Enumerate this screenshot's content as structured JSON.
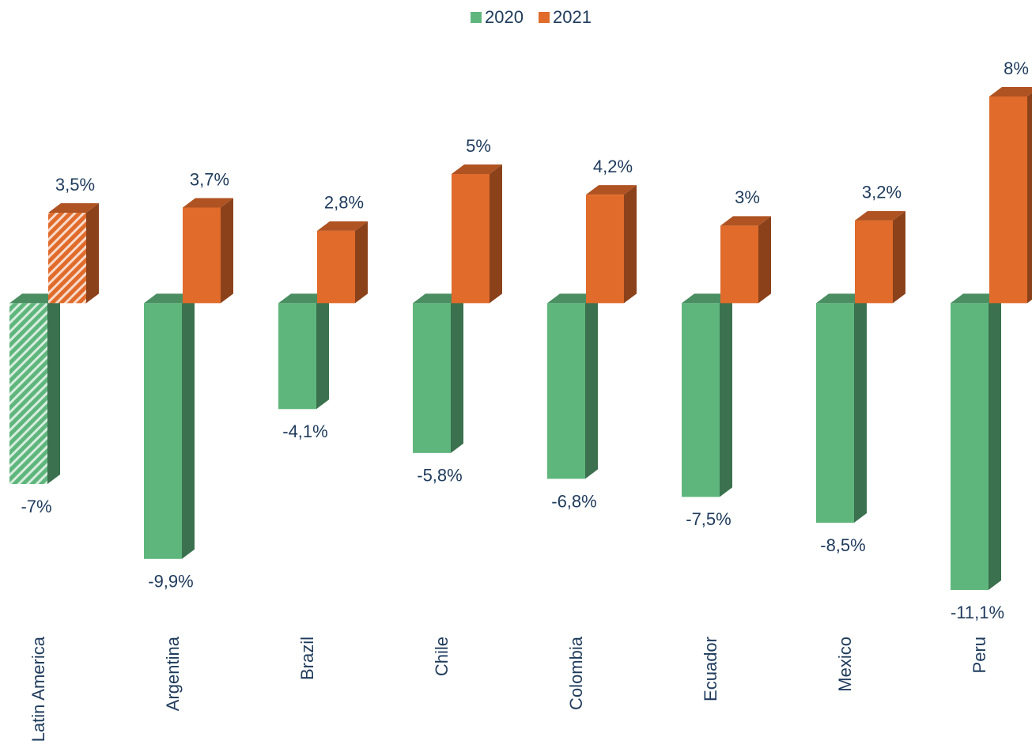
{
  "chart_data": {
    "type": "bar3d",
    "categories": [
      "Latin America",
      "Argentina",
      "Brazil",
      "Chile",
      "Colombia",
      "Ecuador",
      "Mexico",
      "Peru"
    ],
    "series": [
      {
        "name": "2020",
        "color": "#5fb67d",
        "values": [
          -7,
          -9.9,
          -4.1,
          -5.8,
          -6.8,
          -7.5,
          -8.5,
          -11.1
        ],
        "value_labels": [
          "-7%",
          "-9,9%",
          "-4,1%",
          "-5,8%",
          "-6,8%",
          "-7,5%",
          "-8,5%",
          "-11,1%"
        ]
      },
      {
        "name": "2021",
        "color": "#e06b2b",
        "values": [
          3.5,
          3.7,
          2.8,
          5,
          4.2,
          3,
          3.2,
          8
        ],
        "value_labels": [
          "3,5%",
          "3,7%",
          "2,8%",
          "5%",
          "4,2%",
          "3%",
          "3,2%",
          "8%"
        ]
      }
    ],
    "hatched_index": 0,
    "legend": "top"
  }
}
